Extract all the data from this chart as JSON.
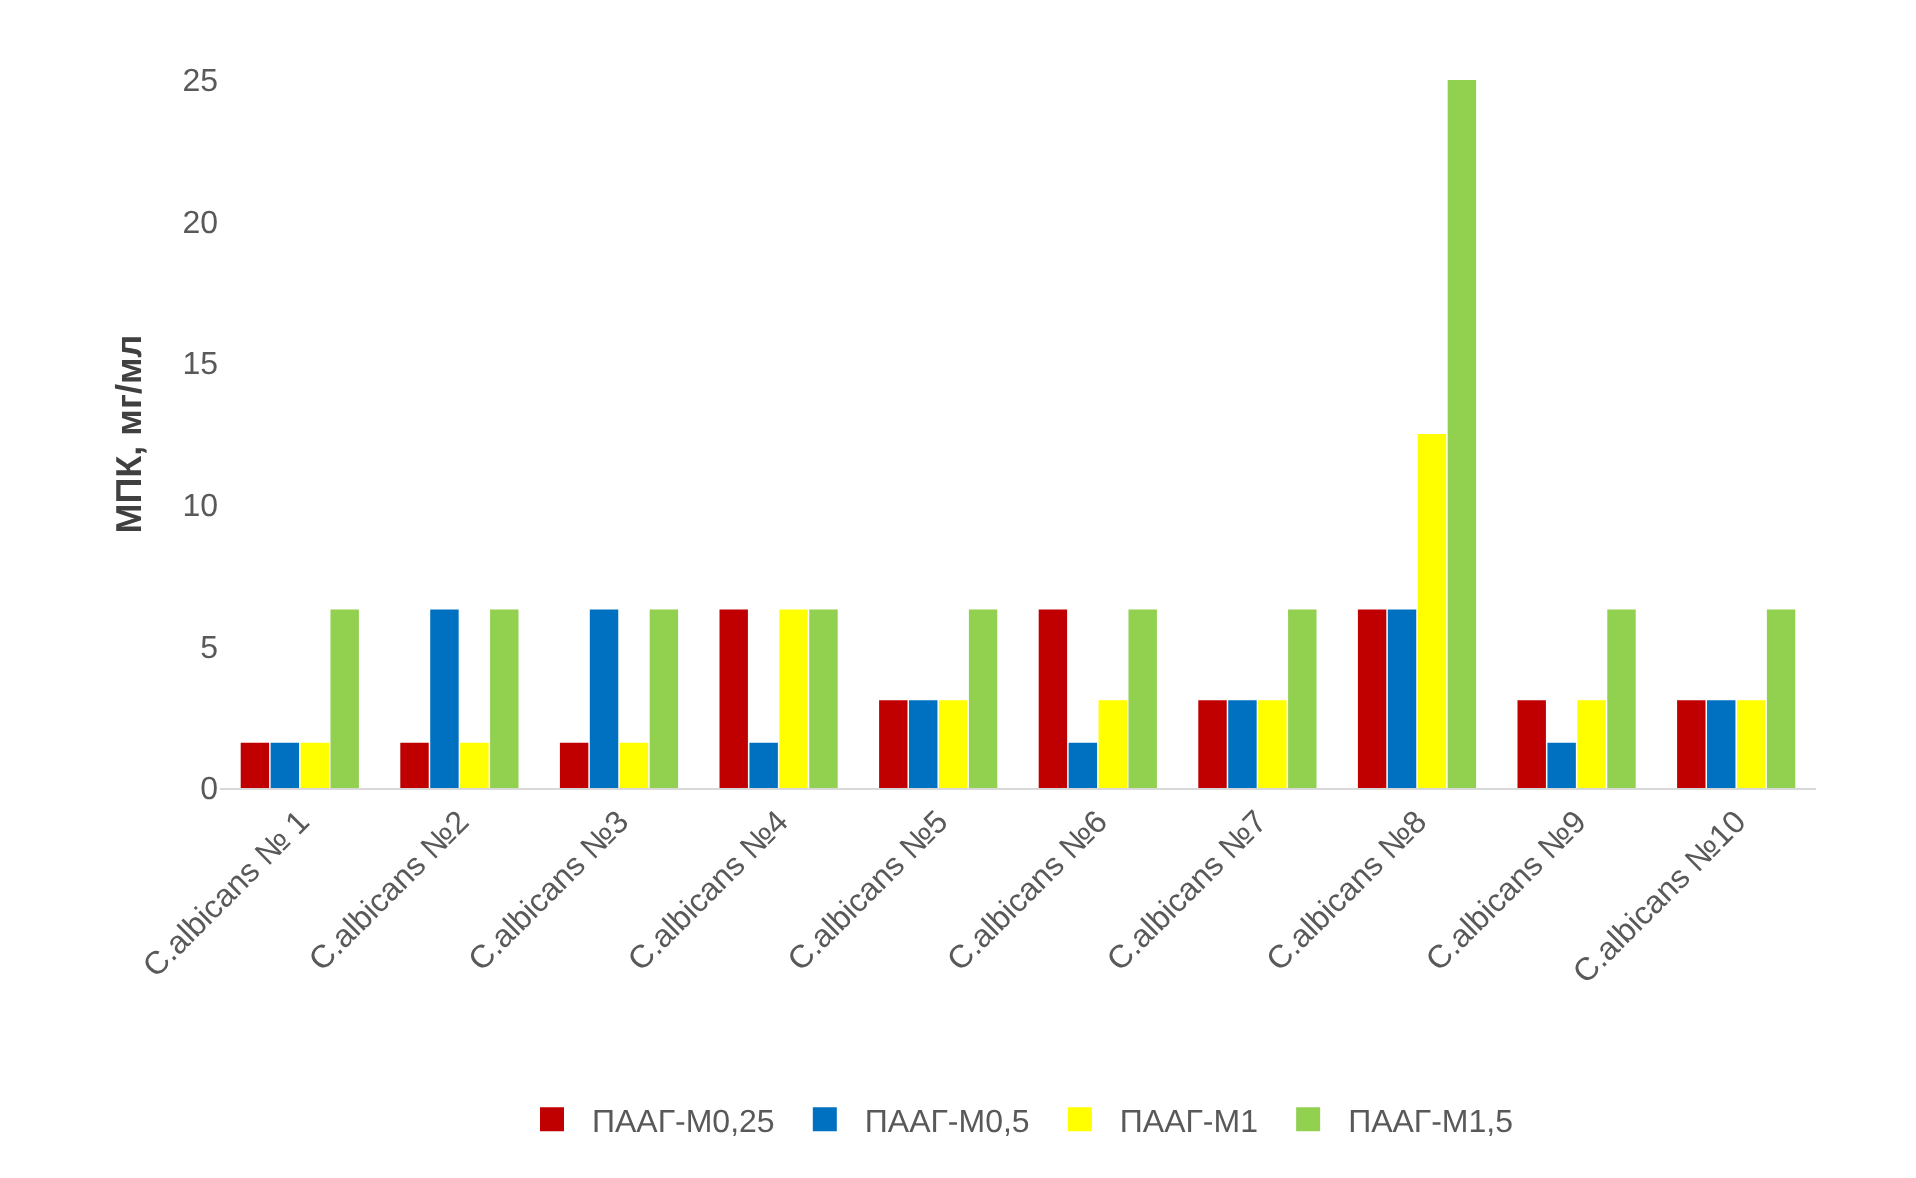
{
  "chart_data": {
    "type": "bar",
    "ylabel": "МПК, мг/мл",
    "categories": [
      "C.albicans № 1",
      "C.albicans №2",
      "C.albicans №3",
      "C.albicans №4",
      "C.albicans №5",
      "C.albicans №6",
      "C.albicans №7",
      "C.albicans №8",
      "C.albicans №9",
      "C.albicans №10"
    ],
    "series": [
      {
        "name": "ПААГ-М0,25",
        "color": "#c00000",
        "values": [
          1.6,
          1.6,
          1.6,
          6.3,
          3.1,
          6.3,
          3.1,
          6.3,
          3.1,
          3.1
        ]
      },
      {
        "name": "ПААГ-М0,5",
        "color": "#0070c0",
        "values": [
          1.6,
          6.3,
          6.3,
          1.6,
          3.1,
          1.6,
          3.1,
          6.3,
          1.6,
          3.1
        ]
      },
      {
        "name": "ПААГ-М1",
        "color": "#ffff00",
        "values": [
          1.6,
          1.6,
          1.6,
          6.3,
          3.1,
          3.1,
          3.1,
          12.5,
          3.1,
          3.1
        ]
      },
      {
        "name": "ПААГ-М1,5",
        "color": "#92d050",
        "values": [
          6.3,
          6.3,
          6.3,
          6.3,
          6.3,
          6.3,
          6.3,
          25,
          6.3,
          6.3
        ]
      }
    ],
    "ylim": [
      0,
      25
    ],
    "yticks": [
      0,
      5,
      10,
      15,
      20,
      25
    ],
    "legend": "bottom"
  }
}
